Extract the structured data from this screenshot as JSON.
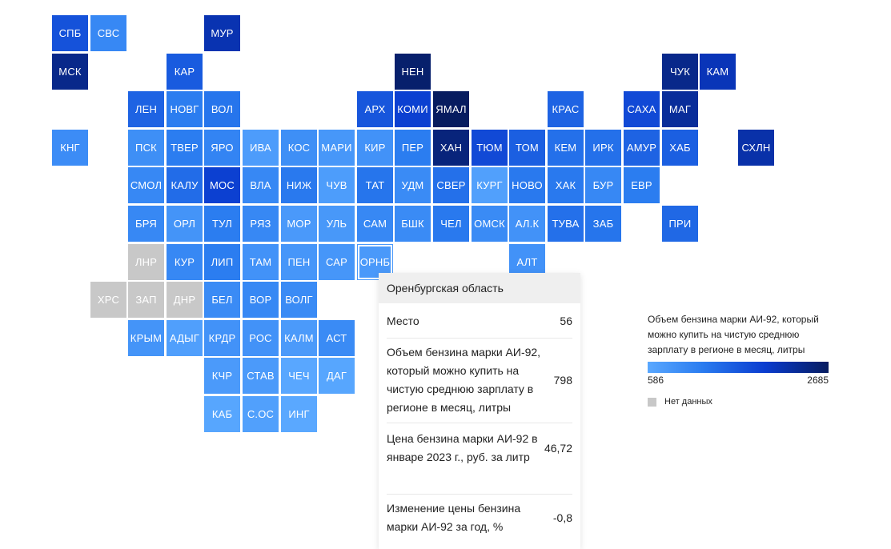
{
  "nodata_color": "#c8c8c8",
  "tiles": [
    {
      "code": "СПБ",
      "row": 0,
      "col": 0,
      "value": 1700
    },
    {
      "code": "СВС",
      "row": 0,
      "col": 1,
      "value": 1050
    },
    {
      "code": "МУР",
      "row": 0,
      "col": 4,
      "value": 2150
    },
    {
      "code": "МСК",
      "row": 1,
      "col": 0,
      "value": 2400
    },
    {
      "code": "КАР",
      "row": 1,
      "col": 3,
      "value": 1600
    },
    {
      "code": "НЕН",
      "row": 1,
      "col": 9,
      "value": 2600
    },
    {
      "code": "ЧУК",
      "row": 1,
      "col": 16,
      "value": 2400
    },
    {
      "code": "КАМ",
      "row": 1,
      "col": 17,
      "value": 2100
    },
    {
      "code": "ЛЕН",
      "row": 2,
      "col": 2,
      "value": 1500
    },
    {
      "code": "НОВГ",
      "row": 2,
      "col": 3,
      "value": 1200
    },
    {
      "code": "ВОЛ",
      "row": 2,
      "col": 4,
      "value": 1300
    },
    {
      "code": "АРХ",
      "row": 2,
      "col": 8,
      "value": 1650
    },
    {
      "code": "КОМИ",
      "row": 2,
      "col": 9,
      "value": 1900
    },
    {
      "code": "ЯМАЛ",
      "row": 2,
      "col": 10,
      "value": 2685
    },
    {
      "code": "КРАС",
      "row": 2,
      "col": 13,
      "value": 1500
    },
    {
      "code": "САХА",
      "row": 2,
      "col": 15,
      "value": 1800
    },
    {
      "code": "МАГ",
      "row": 2,
      "col": 16,
      "value": 2300
    },
    {
      "code": "КНГ",
      "row": 3,
      "col": 0,
      "value": 980
    },
    {
      "code": "ПСК",
      "row": 3,
      "col": 2,
      "value": 950
    },
    {
      "code": "ТВЕР",
      "row": 3,
      "col": 3,
      "value": 1200
    },
    {
      "code": "ЯРО",
      "row": 3,
      "col": 4,
      "value": 1100
    },
    {
      "code": "ИВА",
      "row": 3,
      "col": 5,
      "value": 760
    },
    {
      "code": "КОС",
      "row": 3,
      "col": 6,
      "value": 950
    },
    {
      "code": "МАРИ",
      "row": 3,
      "col": 7,
      "value": 830
    },
    {
      "code": "КИР",
      "row": 3,
      "col": 8,
      "value": 900
    },
    {
      "code": "ПЕР",
      "row": 3,
      "col": 9,
      "value": 1200
    },
    {
      "code": "ХАН",
      "row": 3,
      "col": 10,
      "value": 2500
    },
    {
      "code": "ТЮМ",
      "row": 3,
      "col": 11,
      "value": 1800
    },
    {
      "code": "ТОМ",
      "row": 3,
      "col": 12,
      "value": 1550
    },
    {
      "code": "КЕМ",
      "row": 3,
      "col": 13,
      "value": 1350
    },
    {
      "code": "ИРК",
      "row": 3,
      "col": 14,
      "value": 1350
    },
    {
      "code": "АМУР",
      "row": 3,
      "col": 15,
      "value": 1500
    },
    {
      "code": "ХАБ",
      "row": 3,
      "col": 16,
      "value": 1550
    },
    {
      "code": "СХЛН",
      "row": 3,
      "col": 18,
      "value": 2200
    },
    {
      "code": "СМОЛ",
      "row": 4,
      "col": 2,
      "value": 1050
    },
    {
      "code": "КАЛУ",
      "row": 4,
      "col": 3,
      "value": 1400
    },
    {
      "code": "МОС",
      "row": 4,
      "col": 4,
      "value": 1900
    },
    {
      "code": "ВЛА",
      "row": 4,
      "col": 5,
      "value": 1050
    },
    {
      "code": "НИЖ",
      "row": 4,
      "col": 6,
      "value": 1250
    },
    {
      "code": "ЧУВ",
      "row": 4,
      "col": 7,
      "value": 750
    },
    {
      "code": "ТАТ",
      "row": 4,
      "col": 8,
      "value": 1300
    },
    {
      "code": "УДМ",
      "row": 4,
      "col": 9,
      "value": 1000
    },
    {
      "code": "СВЕР",
      "row": 4,
      "col": 10,
      "value": 1350
    },
    {
      "code": "КУРГ",
      "row": 4,
      "col": 11,
      "value": 700
    },
    {
      "code": "НОВО",
      "row": 4,
      "col": 12,
      "value": 1250
    },
    {
      "code": "ХАК",
      "row": 4,
      "col": 13,
      "value": 1250
    },
    {
      "code": "БУР",
      "row": 4,
      "col": 14,
      "value": 1050
    },
    {
      "code": "ЕВР",
      "row": 4,
      "col": 15,
      "value": 1200
    },
    {
      "code": "БРЯ",
      "row": 5,
      "col": 2,
      "value": 1050
    },
    {
      "code": "ОРЛ",
      "row": 5,
      "col": 3,
      "value": 870
    },
    {
      "code": "ТУЛ",
      "row": 5,
      "col": 4,
      "value": 1200
    },
    {
      "code": "РЯЗ",
      "row": 5,
      "col": 5,
      "value": 1050
    },
    {
      "code": "МОР",
      "row": 5,
      "col": 6,
      "value": 800
    },
    {
      "code": "УЛЬ",
      "row": 5,
      "col": 7,
      "value": 820
    },
    {
      "code": "САМ",
      "row": 5,
      "col": 8,
      "value": 1050
    },
    {
      "code": "БШК",
      "row": 5,
      "col": 9,
      "value": 1000
    },
    {
      "code": "ЧЕЛ",
      "row": 5,
      "col": 10,
      "value": 1250
    },
    {
      "code": "ОМСК",
      "row": 5,
      "col": 11,
      "value": 1000
    },
    {
      "code": "АЛ.К",
      "row": 5,
      "col": 12,
      "value": 900
    },
    {
      "code": "ТУВА",
      "row": 5,
      "col": 13,
      "value": 1350
    },
    {
      "code": "ЗАБ",
      "row": 5,
      "col": 14,
      "value": 1300
    },
    {
      "code": "ПРИ",
      "row": 5,
      "col": 16,
      "value": 1450
    },
    {
      "code": "ЛНР",
      "row": 6,
      "col": 2,
      "value": null
    },
    {
      "code": "КУР",
      "row": 6,
      "col": 3,
      "value": 1050
    },
    {
      "code": "ЛИП",
      "row": 6,
      "col": 4,
      "value": 1200
    },
    {
      "code": "ТАМ",
      "row": 6,
      "col": 5,
      "value": 900
    },
    {
      "code": "ПЕН",
      "row": 6,
      "col": 6,
      "value": 850
    },
    {
      "code": "САР",
      "row": 6,
      "col": 7,
      "value": 850
    },
    {
      "code": "ОРНБ",
      "row": 6,
      "col": 8,
      "value": 798
    },
    {
      "code": "АЛТ",
      "row": 6,
      "col": 12,
      "value": 900
    },
    {
      "code": "ХРС",
      "row": 7,
      "col": 1,
      "value": null
    },
    {
      "code": "ЗАП",
      "row": 7,
      "col": 2,
      "value": null
    },
    {
      "code": "ДНР",
      "row": 7,
      "col": 3,
      "value": null
    },
    {
      "code": "БЕЛ",
      "row": 7,
      "col": 4,
      "value": 1000
    },
    {
      "code": "ВОР",
      "row": 7,
      "col": 5,
      "value": 1050
    },
    {
      "code": "ВОЛГ",
      "row": 7,
      "col": 6,
      "value": 1000
    },
    {
      "code": "КРЫМ",
      "row": 8,
      "col": 2,
      "value": 870
    },
    {
      "code": "АДЫГ",
      "row": 8,
      "col": 3,
      "value": 720
    },
    {
      "code": "КРДР",
      "row": 8,
      "col": 4,
      "value": 900
    },
    {
      "code": "РОС",
      "row": 8,
      "col": 5,
      "value": 900
    },
    {
      "code": "КАЛМ",
      "row": 8,
      "col": 6,
      "value": 780
    },
    {
      "code": "АСТ",
      "row": 8,
      "col": 7,
      "value": 1000
    },
    {
      "code": "КЧР",
      "row": 9,
      "col": 4,
      "value": 780
    },
    {
      "code": "СТАВ",
      "row": 9,
      "col": 5,
      "value": 780
    },
    {
      "code": "ЧЕЧ",
      "row": 9,
      "col": 6,
      "value": 600
    },
    {
      "code": "ДАГ",
      "row": 9,
      "col": 7,
      "value": 620
    },
    {
      "code": "КАБ",
      "row": 10,
      "col": 4,
      "value": 620
    },
    {
      "code": "С.ОС",
      "row": 10,
      "col": 5,
      "value": 700
    },
    {
      "code": "ИНГ",
      "row": 10,
      "col": 6,
      "value": 586
    }
  ],
  "tooltip": {
    "region": "Оренбургская область",
    "rank_label": "Место",
    "rank_value": "56",
    "volume_label": "Объем бензина марки АИ-92, который можно купить на чистую среднюю зарплату в регионе в месяц, литры",
    "volume_value": "798",
    "price_label": "Цена бензина марки АИ-92 в январе 2023 г., руб. за литр",
    "price_value": "46,72",
    "change_label": "Изменение цены бензина марки АИ-92 за год, %",
    "change_value": "-0,8"
  },
  "legend": {
    "title": "Объем бензина марки АИ-92, который можно купить на чистую среднюю зарплату в регионе в месяц, литры",
    "min": "586",
    "max": "2685",
    "min_value": 586,
    "max_value": 2685,
    "nodata_label": "Нет данных"
  },
  "active_region": "ОРНБ"
}
